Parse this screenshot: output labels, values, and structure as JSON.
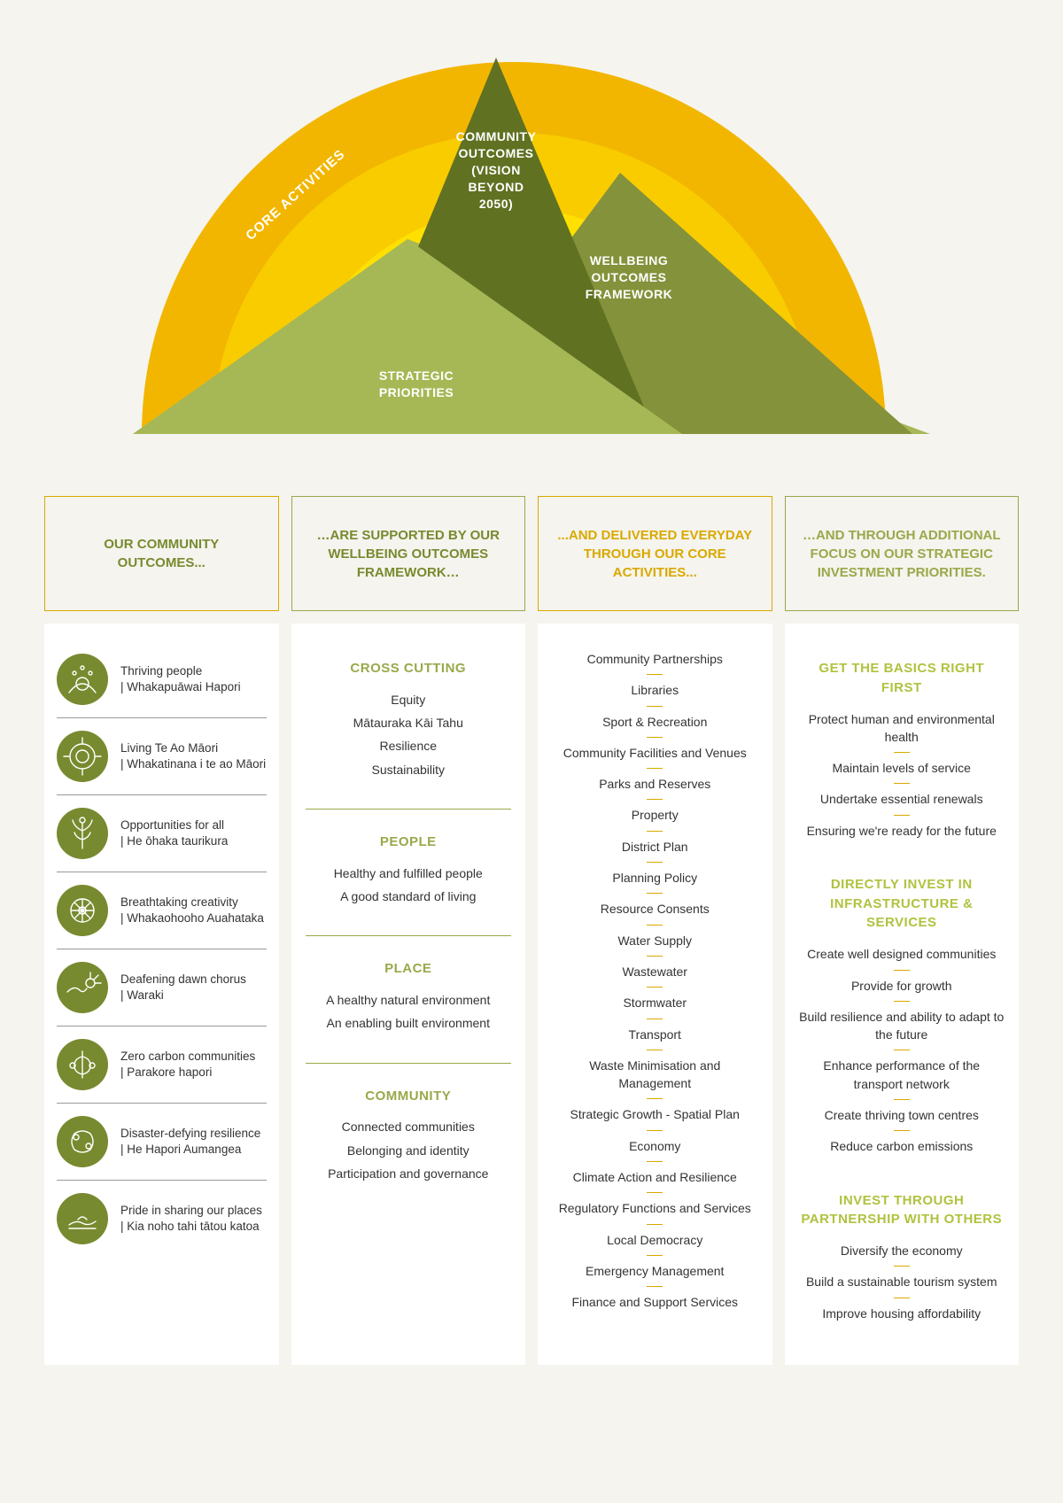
{
  "colors": {
    "bg": "#f5f4ee",
    "sun_outer": "#f2b600",
    "sun_mid": "#f9cc00",
    "sun_inner": "#ffe000",
    "peak_dark": "#607122",
    "peak_mid": "#84923b",
    "peak_light": "#a6b856",
    "olive": "#788a2f",
    "olive_light": "#9aa84a",
    "lime": "#b1c23f",
    "gold": "#d9a900",
    "orange": "#e0a500",
    "text": "#333333"
  },
  "hero": {
    "core_activities": "CORE ACTIVITIES",
    "community_outcomes": "COMMUNITY\nOUTCOMES\n(VISION\nBEYOND\n2050)",
    "wellbeing": "WELLBEING\nOUTCOMES\nFRAMEWORK",
    "strategic": "STRATEGIC\nPRIORITIES"
  },
  "headers": [
    {
      "text": "OUR COMMUNITY OUTCOMES...",
      "color": "#788a2f",
      "border": "#d9a900"
    },
    {
      "text": "…ARE SUPPORTED BY OUR WELLBEING OUTCOMES FRAMEWORK…",
      "color": "#788a2f",
      "border": "#9aa84a"
    },
    {
      "text": "...AND DELIVERED EVERYDAY THROUGH OUR CORE ACTIVITIES...",
      "color": "#d9a900",
      "border": "#d9a900"
    },
    {
      "text": "…AND THROUGH ADDITIONAL FOCUS ON OUR STRATEGIC INVESTMENT PRIORITIES.",
      "color": "#9aa84a",
      "border": "#9aa84a"
    }
  ],
  "outcomes": [
    {
      "title": "Thriving people",
      "maori": "| Whakapuāwai Hapori"
    },
    {
      "title": "Living Te Ao Māori",
      "maori": "| Whakatinana i te ao Māori"
    },
    {
      "title": "Opportunities for all",
      "maori": "| He ōhaka taurikura"
    },
    {
      "title": "Breathtaking creativity",
      "maori": "| Whakaohooho Auahataka"
    },
    {
      "title": "Deafening dawn chorus",
      "maori": "| Waraki"
    },
    {
      "title": "Zero carbon communities",
      "maori": "| Parakore hapori"
    },
    {
      "title": "Disaster-defying resilience",
      "maori": "| He Hapori Aumangea"
    },
    {
      "title": "Pride in sharing our places",
      "maori": "| Kia noho tahi tātou katoa"
    }
  ],
  "wellbeing_sections": [
    {
      "title": "CROSS CUTTING",
      "items": [
        "Equity",
        "Mātauraka Kāi Tahu",
        "Resilience",
        "Sustainability"
      ]
    },
    {
      "title": "PEOPLE",
      "items": [
        "Healthy and fulfilled people",
        "A good standard of living"
      ]
    },
    {
      "title": "PLACE",
      "items": [
        "A healthy natural environment",
        "An enabling built environment"
      ]
    },
    {
      "title": "COMMUNITY",
      "items": [
        "Connected communities",
        "Belonging and identity",
        "Participation and governance"
      ]
    }
  ],
  "core_activities": [
    "Community Partnerships",
    "Libraries",
    "Sport & Recreation",
    "Community Facilities and Venues",
    "Parks and Reserves",
    "Property",
    "District Plan",
    "Planning Policy",
    "Resource Consents",
    "Water Supply",
    "Wastewater",
    "Stormwater",
    "Transport",
    "Waste Minimisation and Management",
    "Strategic Growth - Spatial Plan",
    "Economy",
    "Climate Action and Resilience",
    "Regulatory Functions and Services",
    "Local Democracy",
    "Emergency Management",
    "Finance and Support Services"
  ],
  "priorities": [
    {
      "title": "GET THE BASICS RIGHT FIRST",
      "items": [
        "Protect human and environmental health",
        "Maintain levels of service",
        "Undertake essential renewals",
        "Ensuring we're ready for the future"
      ]
    },
    {
      "title": "DIRECTLY INVEST IN INFRASTRUCTURE & SERVICES",
      "items": [
        "Create well designed communities",
        "Provide for growth",
        "Build resilience and ability to adapt to the future",
        "Enhance performance of the transport network",
        "Create thriving town centres",
        "Reduce carbon emissions"
      ]
    },
    {
      "title": "INVEST THROUGH PARTNERSHIP WITH OTHERS",
      "items": [
        "Diversify the economy",
        "Build a sustainable tourism system",
        "Improve housing affordability"
      ]
    }
  ]
}
